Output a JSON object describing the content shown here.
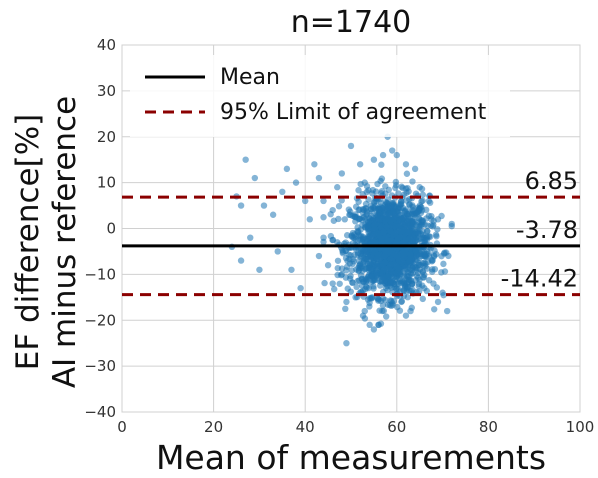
{
  "chart_data": {
    "type": "scatter",
    "title": "n=1740",
    "xlabel": "Mean of measurements",
    "ylabel_lines": [
      "EF difference[%]",
      "AI minus reference"
    ],
    "xlim": [
      0,
      100
    ],
    "ylim": [
      -40,
      40
    ],
    "xticks": [
      0,
      20,
      40,
      60,
      80,
      100
    ],
    "yticks": [
      -40,
      -30,
      -20,
      -10,
      0,
      10,
      20,
      30,
      40
    ],
    "grid": true,
    "legend_position": "top-left",
    "legend": [
      {
        "label": "Mean",
        "style": "solid",
        "color": "#000000"
      },
      {
        "label": "95% Limit of agreement",
        "style": "dashed",
        "color": "#8b0000"
      }
    ],
    "reference_lines": [
      {
        "name": "mean",
        "y": -3.78,
        "label": "-3.78",
        "style": "solid",
        "color": "#000000"
      },
      {
        "name": "upper-limit",
        "y": 6.85,
        "label": "6.85",
        "style": "dashed",
        "color": "#8b0000"
      },
      {
        "name": "lower-limit",
        "y": -14.42,
        "label": "-14.42",
        "style": "dashed",
        "color": "#8b0000"
      }
    ],
    "point_color": "#1f77b4",
    "n_points": 1740,
    "series": [
      {
        "points": [
          [
            27,
            15
          ],
          [
            29,
            11
          ],
          [
            25,
            7
          ],
          [
            26,
            5
          ],
          [
            31,
            5
          ],
          [
            33,
            3
          ],
          [
            28,
            -2
          ],
          [
            24,
            -4
          ],
          [
            26,
            -7
          ],
          [
            30,
            -9
          ],
          [
            36,
            13
          ],
          [
            38,
            10
          ],
          [
            35,
            8
          ],
          [
            34,
            -5
          ],
          [
            37,
            -9
          ],
          [
            39,
            -13
          ],
          [
            40,
            6
          ],
          [
            41,
            2
          ],
          [
            42,
            14
          ],
          [
            43,
            11
          ],
          [
            44,
            -2
          ],
          [
            45,
            -8
          ],
          [
            46,
            -12
          ],
          [
            47,
            9
          ],
          [
            48,
            12
          ],
          [
            49,
            -16
          ],
          [
            50,
            18
          ],
          [
            51,
            -15
          ],
          [
            52,
            14
          ],
          [
            53,
            -18
          ],
          [
            54,
            -17
          ],
          [
            55,
            15
          ],
          [
            56,
            -21
          ],
          [
            57,
            16
          ],
          [
            58,
            20
          ],
          [
            59,
            17
          ],
          [
            60,
            16
          ],
          [
            61,
            -16
          ],
          [
            62,
            14
          ],
          [
            63,
            -18
          ],
          [
            64,
            13
          ],
          [
            65,
            9
          ],
          [
            66,
            -13
          ],
          [
            67,
            6
          ],
          [
            68,
            -12
          ],
          [
            69,
            -16
          ],
          [
            70,
            -14
          ],
          [
            71,
            -18
          ],
          [
            72,
            1
          ],
          [
            49,
            -25
          ],
          [
            55,
            -22
          ],
          [
            62,
            -19
          ],
          [
            46,
            4
          ],
          [
            44,
            6
          ],
          [
            47,
            -3
          ],
          [
            43,
            -6
          ],
          [
            48,
            -10
          ],
          [
            53,
            10
          ],
          [
            67,
            -6
          ],
          [
            69,
            2
          ]
        ]
      }
    ],
    "dense_cluster": {
      "description_note": "main point mass",
      "x_mean": 58.5,
      "y_mean": -3.78,
      "x_sd": 4.3,
      "y_sd": 5.4
    }
  }
}
